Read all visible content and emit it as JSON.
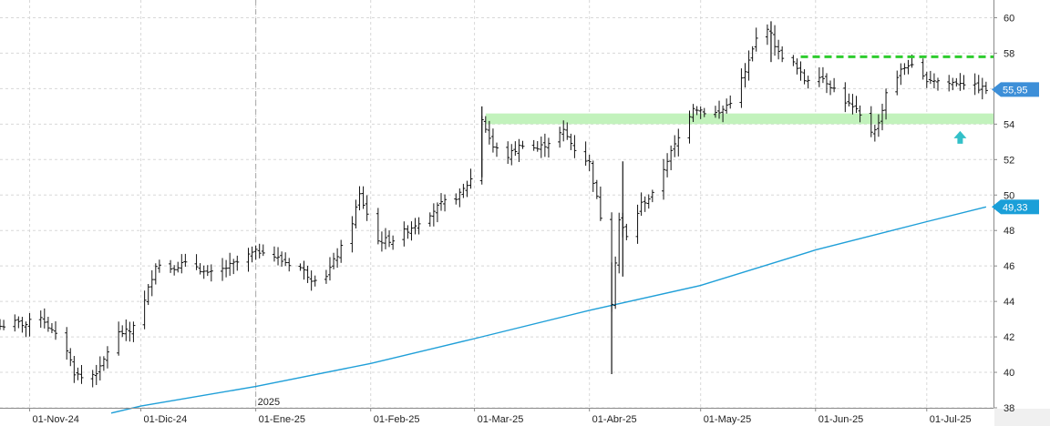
{
  "chart_data": {
    "type": "ohlc",
    "title": "",
    "xlabel": "",
    "ylabel": "",
    "ylim": [
      38,
      61
    ],
    "y_ticks": [
      38,
      40,
      42,
      44,
      46,
      48,
      50,
      52,
      54,
      56,
      58,
      60
    ],
    "y_tick_labels": [
      "38",
      "40",
      "42",
      "44",
      "46",
      "48",
      "50",
      "52",
      "54",
      "56",
      "58",
      "60"
    ],
    "x_range": [
      "2024-10-24",
      "2025-07-19"
    ],
    "x_ticks": [
      {
        "date": "2024-11-01",
        "label": "01-Nov-24"
      },
      {
        "date": "2024-12-01",
        "label": "01-Dic-24"
      },
      {
        "date": "2025-01-01",
        "label": "01-Ene-25"
      },
      {
        "date": "2025-02-01",
        "label": "01-Feb-25"
      },
      {
        "date": "2025-03-01",
        "label": "01-Mar-25"
      },
      {
        "date": "2025-04-01",
        "label": "01-Abr-25"
      },
      {
        "date": "2025-05-01",
        "label": "01-May-25"
      },
      {
        "date": "2025-06-01",
        "label": "01-Jun-25"
      },
      {
        "date": "2025-07-01",
        "label": "01-Jul-25"
      }
    ],
    "year_marker": {
      "date": "2025-01-01",
      "label": "2025"
    },
    "grid": true,
    "price_points": [
      [
        "2024-10-24",
        42.6
      ],
      [
        "2024-10-28",
        42.8
      ],
      [
        "2024-10-31",
        42.7
      ],
      [
        "2024-11-04",
        43.2
      ],
      [
        "2024-11-07",
        42.3
      ],
      [
        "2024-11-11",
        41.3
      ],
      [
        "2024-11-13",
        40.0
      ],
      [
        "2024-11-15",
        39.7
      ],
      [
        "2024-11-18",
        39.9
      ],
      [
        "2024-11-20",
        40.2
      ],
      [
        "2024-11-22",
        41.2
      ],
      [
        "2024-11-25",
        42.2
      ],
      [
        "2024-11-28",
        42.3
      ],
      [
        "2024-12-02",
        44.0
      ],
      [
        "2024-12-05",
        46.1
      ],
      [
        "2024-12-09",
        45.9
      ],
      [
        "2024-12-12",
        46.1
      ],
      [
        "2024-12-16",
        46.0
      ],
      [
        "2024-12-19",
        45.5
      ],
      [
        "2024-12-23",
        45.8
      ],
      [
        "2024-12-27",
        46.2
      ],
      [
        "2024-12-31",
        46.7
      ],
      [
        "2025-01-03",
        46.9
      ],
      [
        "2025-01-08",
        46.3
      ],
      [
        "2025-01-13",
        45.9
      ],
      [
        "2025-01-16",
        45.3
      ],
      [
        "2025-01-20",
        45.5
      ],
      [
        "2025-01-24",
        47.0
      ],
      [
        "2025-01-27",
        48.5
      ],
      [
        "2025-01-29",
        50.0
      ],
      [
        "2025-02-03",
        47.4
      ],
      [
        "2025-02-07",
        47.5
      ],
      [
        "2025-02-12",
        48.2
      ],
      [
        "2025-02-17",
        49.0
      ],
      [
        "2025-02-21",
        49.6
      ],
      [
        "2025-02-25",
        50.0
      ],
      [
        "2025-02-28",
        50.9
      ],
      [
        "2025-03-03",
        54.3
      ],
      [
        "2025-03-06",
        52.7
      ],
      [
        "2025-03-10",
        52.2
      ],
      [
        "2025-03-14",
        52.9
      ],
      [
        "2025-03-18",
        52.6
      ],
      [
        "2025-03-21",
        53.0
      ],
      [
        "2025-03-25",
        53.6
      ],
      [
        "2025-03-28",
        52.6
      ],
      [
        "2025-04-01",
        51.8
      ],
      [
        "2025-04-04",
        48.8
      ],
      [
        "2025-04-07",
        44.0
      ],
      [
        "2025-04-09",
        48.6
      ],
      [
        "2025-04-11",
        47.6
      ],
      [
        "2025-04-15",
        49.5
      ],
      [
        "2025-04-18",
        50.0
      ],
      [
        "2025-04-22",
        52.0
      ],
      [
        "2025-04-25",
        53.2
      ],
      [
        "2025-04-29",
        55.0
      ],
      [
        "2025-05-02",
        54.7
      ],
      [
        "2025-05-06",
        54.6
      ],
      [
        "2025-05-09",
        55.3
      ],
      [
        "2025-05-13",
        56.9
      ],
      [
        "2025-05-16",
        58.8
      ],
      [
        "2025-05-19",
        59.5
      ],
      [
        "2025-05-22",
        58.0
      ],
      [
        "2025-05-26",
        57.4
      ],
      [
        "2025-05-29",
        56.5
      ],
      [
        "2025-06-02",
        56.8
      ],
      [
        "2025-06-05",
        56.2
      ],
      [
        "2025-06-09",
        55.3
      ],
      [
        "2025-06-12",
        54.7
      ],
      [
        "2025-06-16",
        53.6
      ],
      [
        "2025-06-18",
        54.0
      ],
      [
        "2025-06-20",
        55.8
      ],
      [
        "2025-06-24",
        57.0
      ],
      [
        "2025-06-26",
        57.4
      ],
      [
        "2025-06-30",
        56.6
      ],
      [
        "2025-07-03",
        56.5
      ],
      [
        "2025-07-07",
        56.3
      ],
      [
        "2025-07-10",
        56.4
      ],
      [
        "2025-07-14",
        56.1
      ],
      [
        "2025-07-17",
        55.95
      ]
    ],
    "spikes": [
      {
        "date": "2025-04-07",
        "low": 39.9,
        "high": 46.2
      },
      {
        "date": "2025-04-10",
        "low": 45.4,
        "high": 51.9
      },
      {
        "date": "2025-03-03",
        "low": 51.0,
        "high": 55.0
      },
      {
        "date": "2025-05-20",
        "low": 57.5,
        "high": 59.8
      }
    ],
    "moving_average": {
      "color": "#1f9fd8",
      "points": [
        [
          "2024-11-23",
          37.7
        ],
        [
          "2024-12-01",
          38.1
        ],
        [
          "2025-01-01",
          39.2
        ],
        [
          "2025-02-01",
          40.5
        ],
        [
          "2025-03-01",
          41.9
        ],
        [
          "2025-04-01",
          43.5
        ],
        [
          "2025-05-01",
          44.9
        ],
        [
          "2025-06-01",
          46.9
        ],
        [
          "2025-07-01",
          48.5
        ],
        [
          "2025-07-17",
          49.33
        ]
      ]
    },
    "support_zone": {
      "from": "2025-03-04",
      "to": "2025-07-19",
      "low": 54.0,
      "high": 54.6,
      "color": "#c2f2bc"
    },
    "resistance_line": {
      "from": "2025-05-28",
      "to": "2025-07-19",
      "value": 57.8,
      "color": "#2ecc2e"
    },
    "arrow": {
      "date": "2025-07-10",
      "value": 53.0,
      "color": "#33c0c8"
    },
    "last_price": {
      "value": 55.95,
      "label": "55,95",
      "color": "#3d8fd8"
    },
    "ma_value": {
      "value": 49.33,
      "label": "49,33",
      "color": "#1a9fd8"
    }
  }
}
